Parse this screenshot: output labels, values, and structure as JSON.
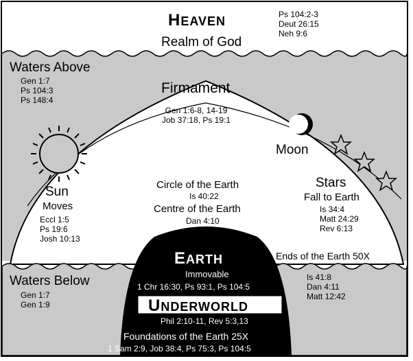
{
  "heaven": {
    "title_cap": "H",
    "title_rest": "EAVEN",
    "subtitle": "Realm of God",
    "refs": [
      "Ps 104:2-3",
      "Deut 26:15",
      "Neh 9:6"
    ]
  },
  "waters_above": {
    "label": "Waters Above",
    "refs": [
      "Gen 1:7",
      "Ps 104:3",
      "Ps 148:4"
    ]
  },
  "firmament": {
    "label": "Firmament",
    "refs": [
      "Gen 1:6-8, 14-19",
      "Job 37:18, Ps 19:1"
    ]
  },
  "moon": {
    "label": "Moon"
  },
  "sun": {
    "label": "Sun",
    "sublabel": "Moves",
    "refs": [
      "Eccl 1:5",
      "Ps 19:6",
      "Josh 10:13"
    ]
  },
  "stars": {
    "label": "Stars",
    "sublabel": "Fall to Earth",
    "refs": [
      "Is 34:4",
      "Matt 24:29",
      "Rev 6:13"
    ]
  },
  "circle": {
    "label": "Circle of the Earth",
    "ref": "Is 40:22"
  },
  "centre": {
    "label": "Centre of the Earth",
    "ref": "Dan 4:10"
  },
  "earth": {
    "title_cap": "E",
    "title_rest": "ARTH",
    "sublabel": "Immovable",
    "refs": "1 Chr 16:30, Ps 93:1, Ps 104:5"
  },
  "ends": {
    "label": "Ends of the Earth  50X",
    "refs": [
      "Is 41:8",
      "Dan 4:11",
      "Matt 12:42"
    ]
  },
  "waters_below": {
    "label": "Waters Below",
    "refs": [
      "Gen 1:7",
      "Gen 1:9"
    ]
  },
  "underworld": {
    "title_cap": "U",
    "title_rest": "NDERWORLD",
    "refs": "Phil 2:10-11, Rev 5:3,13"
  },
  "foundations": {
    "label": "Foundations of the Earth  25X",
    "refs": "1 Sam 2:9, Job 38:4, Ps 75:3, Ps 104:5"
  },
  "colors": {
    "water": "#c9c9c9",
    "earth": "#000000",
    "paper": "#ffffff"
  },
  "icons": [
    "sun-icon",
    "crescent-moon-icon",
    "star-icon"
  ]
}
